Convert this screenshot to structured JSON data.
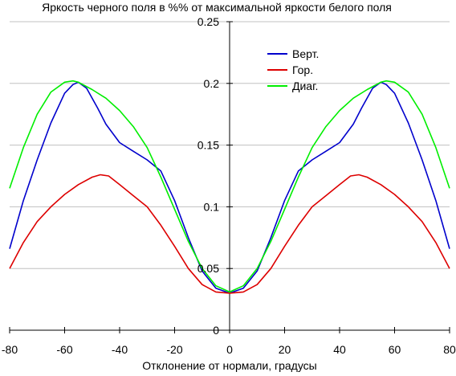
{
  "chart_data": {
    "type": "line",
    "title": "Яркость черного поля в %% от максимальной яркости белого поля",
    "xlabel": "Отклонение от нормали, градусы",
    "ylabel": "",
    "xlim": [
      -80,
      80
    ],
    "ylim": [
      0,
      0.25
    ],
    "x_ticks": [
      -80,
      -60,
      -40,
      -20,
      0,
      20,
      40,
      60,
      80
    ],
    "y_ticks": [
      0,
      0.05,
      0.1,
      0.15,
      0.2,
      0.25
    ],
    "x_tick_labels": [
      "-80",
      "-60",
      "-40",
      "-20",
      "0",
      "20",
      "40",
      "60",
      "80"
    ],
    "y_tick_labels": [
      "0",
      "0.05",
      "0.1",
      "0.15",
      "0.2",
      "0.25"
    ],
    "grid": "horizontal",
    "legend_position": "top-right",
    "series": [
      {
        "name": "Верт.",
        "color": "#0000cc",
        "x": [
          -80,
          -75,
          -70,
          -65,
          -60,
          -57,
          -55,
          -52,
          -48,
          -45,
          -40,
          -35,
          -30,
          -25,
          -20,
          -15,
          -10,
          -5,
          0,
          5,
          10,
          15,
          20,
          25,
          30,
          35,
          40,
          45,
          48,
          52,
          55,
          57,
          60,
          65,
          70,
          75,
          80
        ],
        "y": [
          0.066,
          0.105,
          0.138,
          0.168,
          0.192,
          0.199,
          0.201,
          0.196,
          0.18,
          0.167,
          0.152,
          0.145,
          0.138,
          0.129,
          0.105,
          0.075,
          0.048,
          0.034,
          0.03,
          0.034,
          0.048,
          0.075,
          0.105,
          0.129,
          0.138,
          0.145,
          0.152,
          0.167,
          0.18,
          0.196,
          0.201,
          0.199,
          0.192,
          0.168,
          0.138,
          0.105,
          0.066
        ]
      },
      {
        "name": "Гор.",
        "color": "#dd0000",
        "x": [
          -80,
          -75,
          -70,
          -65,
          -60,
          -55,
          -50,
          -47,
          -44,
          -40,
          -35,
          -30,
          -25,
          -20,
          -15,
          -10,
          -5,
          0,
          5,
          10,
          15,
          20,
          25,
          30,
          35,
          40,
          44,
          47,
          50,
          55,
          60,
          65,
          70,
          75,
          80
        ],
        "y": [
          0.05,
          0.071,
          0.088,
          0.1,
          0.11,
          0.118,
          0.124,
          0.126,
          0.125,
          0.118,
          0.109,
          0.1,
          0.085,
          0.068,
          0.05,
          0.037,
          0.031,
          0.03,
          0.031,
          0.037,
          0.05,
          0.068,
          0.085,
          0.1,
          0.109,
          0.118,
          0.125,
          0.126,
          0.124,
          0.118,
          0.11,
          0.1,
          0.088,
          0.071,
          0.05
        ]
      },
      {
        "name": "Диаг.",
        "color": "#00ee00",
        "x": [
          -80,
          -75,
          -70,
          -65,
          -60,
          -57,
          -55,
          -50,
          -45,
          -40,
          -35,
          -30,
          -25,
          -20,
          -15,
          -10,
          -5,
          0,
          5,
          10,
          15,
          20,
          25,
          30,
          35,
          40,
          45,
          50,
          55,
          57,
          60,
          65,
          70,
          75,
          80
        ],
        "y": [
          0.115,
          0.148,
          0.175,
          0.193,
          0.201,
          0.202,
          0.201,
          0.195,
          0.188,
          0.178,
          0.165,
          0.148,
          0.124,
          0.098,
          0.072,
          0.05,
          0.036,
          0.031,
          0.036,
          0.05,
          0.072,
          0.098,
          0.124,
          0.148,
          0.165,
          0.178,
          0.188,
          0.195,
          0.201,
          0.202,
          0.201,
          0.193,
          0.175,
          0.148,
          0.115
        ]
      }
    ]
  }
}
